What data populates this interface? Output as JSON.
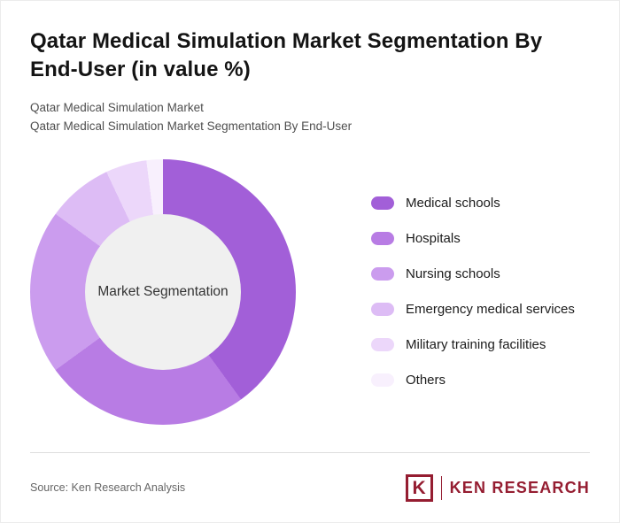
{
  "header": {
    "title": "Qatar Medical Simulation Market Segmentation By End-User (in value %)",
    "subtitle1": "Qatar Medical Simulation Market",
    "subtitle2": "Qatar Medical Simulation Market Segmentation By End-User"
  },
  "chart_data": {
    "type": "pie",
    "donut": true,
    "title": "Qatar Medical Simulation Market Segmentation By End-User (in value %)",
    "center_label": "Market Segmentation",
    "categories": [
      "Medical schools",
      "Hospitals",
      "Nursing schools",
      "Emergency medical services",
      "Military training facilities",
      "Others"
    ],
    "values": [
      40,
      25,
      20,
      8,
      5,
      2
    ],
    "colors": [
      "#a25fd8",
      "#b87ce4",
      "#cb9cee",
      "#ddbcf5",
      "#ecd7fa",
      "#f8f0fd"
    ],
    "start_angle_deg": 0,
    "legend_position": "right",
    "hole_color": "#f0f0f0"
  },
  "footer": {
    "source": "Source: Ken Research Analysis",
    "logo_letter": "K",
    "logo_text": "KEN RESEARCH",
    "logo_color": "#951d31"
  }
}
